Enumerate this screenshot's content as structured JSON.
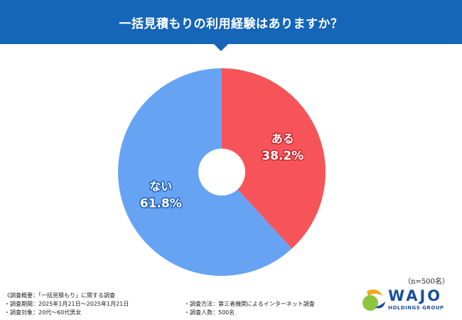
{
  "header": {
    "title": "一括見積もりの利用経験はありますか？"
  },
  "colors": {
    "header_bg": "#1565b9",
    "aru": "#f65459",
    "nai": "#66a3f3",
    "aru_outline": "#c9242b",
    "nai_outline": "#1f5fb5",
    "logo_blue": "#1a4f9c",
    "logo_green": "#8cc63f",
    "logo_gold": "#f0a81e"
  },
  "chart_data": {
    "type": "pie",
    "title": "一括見積もりの利用経験はありますか？",
    "start": "top, clockwise",
    "donut_hole": true,
    "slices": [
      {
        "label": "ある",
        "percent_label": "38.2%",
        "value": 38.2,
        "color": "#f65459",
        "outline": "#c9242b"
      },
      {
        "label": "ない",
        "percent_label": "61.8%",
        "value": 61.8,
        "color": "#66a3f3",
        "outline": "#1f5fb5"
      }
    ]
  },
  "sample_size": "（n=500名）",
  "survey": {
    "overview": "《調査概要：「一括見積もり」に関する調査",
    "period": "・調査期間：2025年1月21日～2025年1月21日",
    "target": "・調査対象：20代～60代男女",
    "method": "・調査方法：第三者機関によるインターネット調査",
    "count": "・調査人数：500名"
  },
  "logo": {
    "name": "WAJO",
    "subtitle": "HOLDINGS GROUP"
  }
}
